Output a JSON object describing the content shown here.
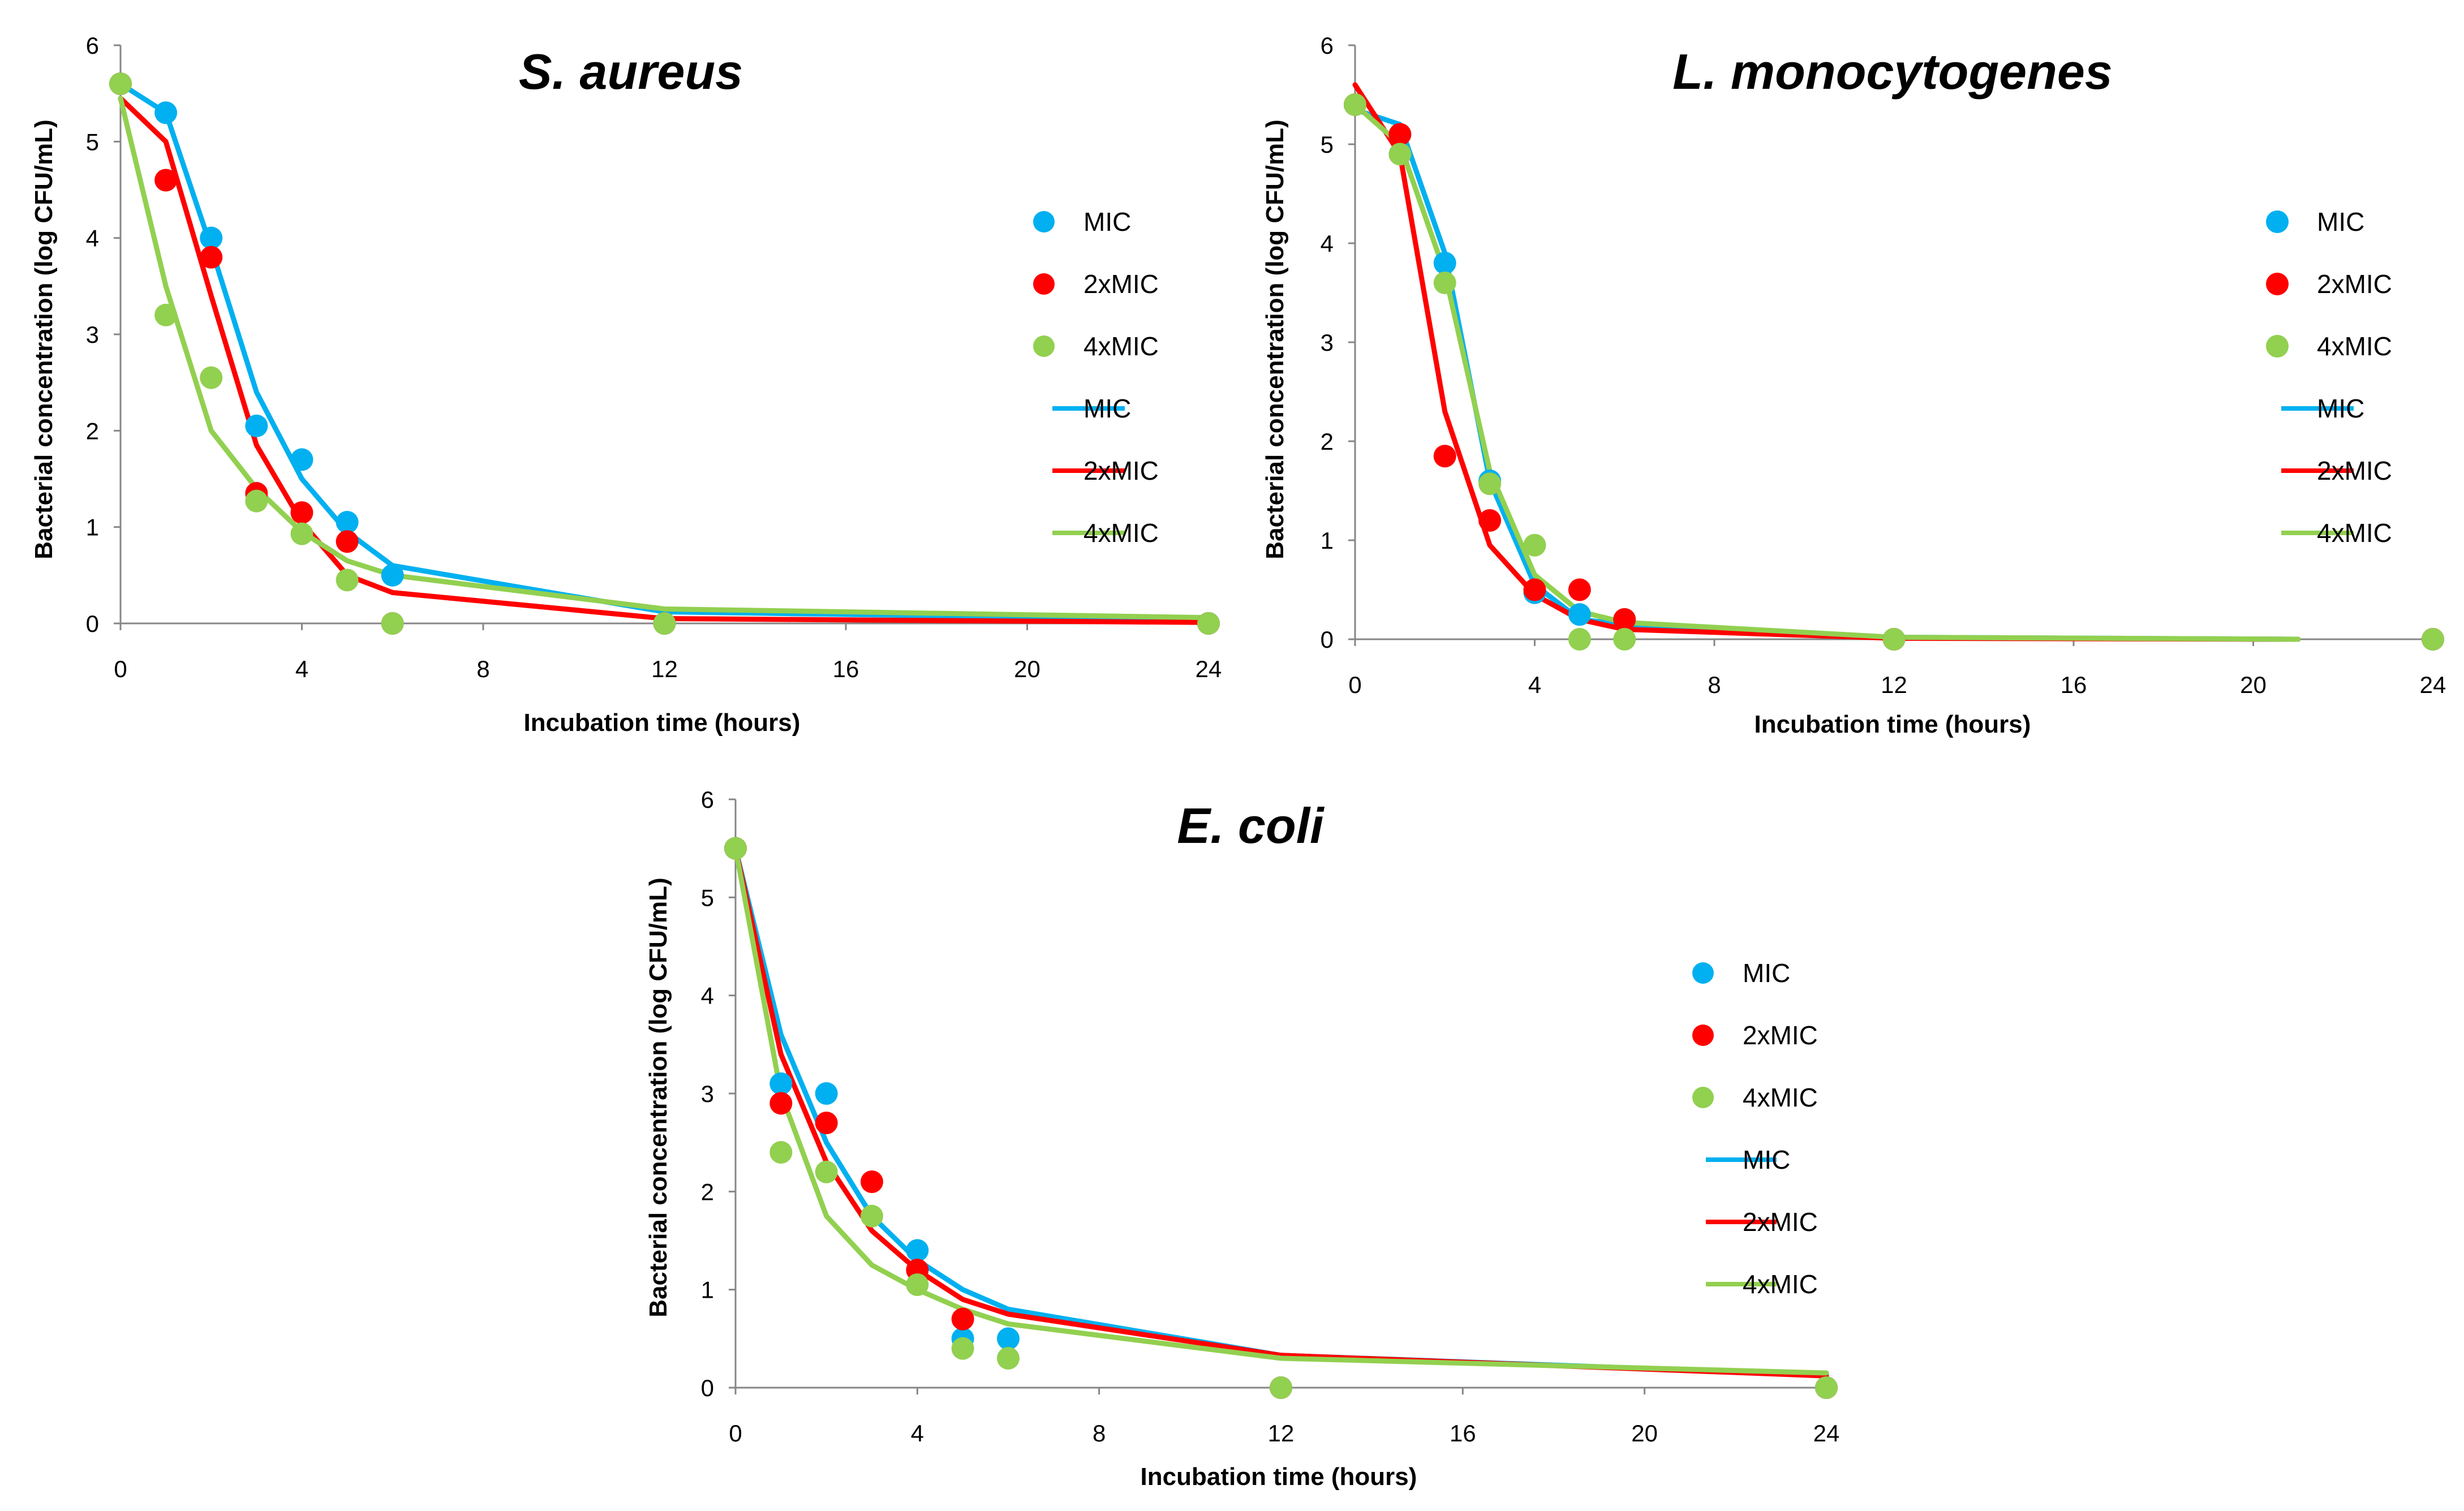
{
  "chart_data": [
    {
      "type": "scatter+line",
      "title": "S. aureus",
      "xlabel": "Incubation time (hours)",
      "ylabel": "Bacterial concentration (log CFU/mL)",
      "xlim": [
        0,
        24
      ],
      "ylim": [
        0,
        6
      ],
      "xticks": [
        "0",
        "4",
        "8",
        "12",
        "16",
        "20",
        "24"
      ],
      "yticks": [
        "0",
        "1",
        "2",
        "3",
        "4",
        "5",
        "6"
      ],
      "legend": [
        "MIC",
        "2xMIC",
        "4xMIC",
        "MIC",
        "2xMIC",
        "4xMIC"
      ],
      "points": [
        {
          "name": "MIC",
          "color": "#00b0f0",
          "x": [
            0,
            1,
            2,
            3,
            4,
            5,
            6,
            12,
            24
          ],
          "y": [
            5.6,
            5.3,
            4.0,
            2.05,
            1.7,
            1.05,
            0.5,
            0,
            0
          ]
        },
        {
          "name": "2xMIC",
          "color": "#ff0000",
          "x": [
            0,
            1,
            2,
            3,
            4,
            5,
            6,
            12,
            24
          ],
          "y": [
            5.6,
            4.6,
            3.8,
            1.35,
            1.15,
            0.85,
            0,
            0,
            0
          ]
        },
        {
          "name": "4xMIC",
          "color": "#92d050",
          "x": [
            0,
            1,
            2,
            3,
            4,
            5,
            6,
            12,
            24
          ],
          "y": [
            5.6,
            3.2,
            2.55,
            1.27,
            0.93,
            0.45,
            0,
            0,
            0
          ]
        }
      ],
      "lines": [
        {
          "name": "MIC",
          "color": "#00b0f0",
          "x": [
            0,
            1,
            2,
            3,
            4,
            5,
            6,
            12,
            24
          ],
          "y": [
            5.6,
            5.3,
            3.9,
            2.4,
            1.5,
            0.95,
            0.6,
            0.12,
            0.04
          ]
        },
        {
          "name": "2xMIC",
          "color": "#ff0000",
          "x": [
            0,
            1,
            2,
            3,
            4,
            5,
            6,
            12,
            24
          ],
          "y": [
            5.45,
            5.0,
            3.4,
            1.85,
            1.05,
            0.5,
            0.32,
            0.05,
            0.01
          ]
        },
        {
          "name": "4xMIC",
          "color": "#92d050",
          "x": [
            0,
            1,
            2,
            3,
            4,
            5,
            6,
            12,
            24
          ],
          "y": [
            5.45,
            3.5,
            2.0,
            1.4,
            0.95,
            0.65,
            0.5,
            0.15,
            0.06
          ]
        }
      ]
    },
    {
      "type": "scatter+line",
      "title": "L. monocytogenes",
      "xlabel": "Incubation time (hours)",
      "ylabel": "Bacterial concentration (log CFU/mL)",
      "xlim": [
        0,
        24
      ],
      "ylim": [
        0,
        6
      ],
      "xticks": [
        "0",
        "4",
        "8",
        "12",
        "16",
        "20",
        "24"
      ],
      "yticks": [
        "0",
        "1",
        "2",
        "3",
        "4",
        "5",
        "6"
      ],
      "legend": [
        "MIC",
        "2xMIC",
        "4xMIC",
        "MIC",
        "2xMIC",
        "4xMIC"
      ],
      "points": [
        {
          "name": "MIC",
          "color": "#00b0f0",
          "x": [
            0,
            1,
            2,
            3,
            4,
            5,
            6,
            12,
            24
          ],
          "y": [
            5.4,
            5.1,
            3.8,
            1.6,
            0.47,
            0.25,
            0.2,
            0,
            0
          ]
        },
        {
          "name": "2xMIC",
          "color": "#ff0000",
          "x": [
            0,
            1,
            2,
            3,
            4,
            5,
            6,
            12,
            24
          ],
          "y": [
            5.4,
            5.1,
            1.85,
            1.2,
            0.5,
            0.5,
            0.2,
            0,
            0
          ]
        },
        {
          "name": "4xMIC",
          "color": "#92d050",
          "x": [
            0,
            1,
            2,
            3,
            4,
            5,
            6,
            12,
            24
          ],
          "y": [
            5.4,
            4.9,
            3.6,
            1.57,
            0.95,
            0,
            0,
            0,
            0
          ]
        }
      ],
      "lines": [
        {
          "name": "MIC",
          "color": "#00b0f0",
          "x": [
            0,
            1,
            2,
            3,
            4,
            5,
            6,
            12,
            21
          ],
          "y": [
            5.35,
            5.2,
            3.9,
            1.6,
            0.55,
            0.2,
            0.15,
            0.02,
            0
          ]
        },
        {
          "name": "2xMIC",
          "color": "#ff0000",
          "x": [
            0,
            1,
            2,
            3,
            4,
            5,
            6,
            12,
            21
          ],
          "y": [
            5.6,
            4.9,
            2.3,
            0.95,
            0.45,
            0.2,
            0.1,
            0.01,
            0
          ]
        },
        {
          "name": "4xMIC",
          "color": "#92d050",
          "x": [
            0,
            1,
            2,
            3,
            4,
            5,
            6,
            12,
            21
          ],
          "y": [
            5.4,
            5.0,
            3.7,
            1.7,
            0.65,
            0.28,
            0.17,
            0.02,
            0
          ]
        }
      ]
    },
    {
      "type": "scatter+line",
      "title": "E. coli",
      "xlabel": "Incubation time (hours)",
      "ylabel": "Bacterial concentration (log CFU/mL)",
      "xlim": [
        0,
        24
      ],
      "ylim": [
        0,
        6
      ],
      "xticks": [
        "0",
        "4",
        "8",
        "12",
        "16",
        "20",
        "24"
      ],
      "yticks": [
        "0",
        "1",
        "2",
        "3",
        "4",
        "5",
        "6"
      ],
      "legend": [
        "MIC",
        "2xMIC",
        "4xMIC",
        "MIC",
        "2xMIC",
        "4xMIC"
      ],
      "points": [
        {
          "name": "MIC",
          "color": "#00b0f0",
          "x": [
            0,
            1,
            2,
            4,
            5,
            6,
            12,
            24
          ],
          "y": [
            5.5,
            3.1,
            3.0,
            1.4,
            0.5,
            0.5,
            0,
            0
          ]
        },
        {
          "name": "2xMIC",
          "color": "#ff0000",
          "x": [
            0,
            1,
            2,
            3,
            4,
            5,
            12,
            24
          ],
          "y": [
            5.5,
            2.9,
            2.7,
            2.1,
            1.2,
            0.7,
            0,
            0
          ]
        },
        {
          "name": "4xMIC",
          "color": "#92d050",
          "x": [
            0,
            1,
            2,
            3,
            4,
            5,
            6,
            12,
            24
          ],
          "y": [
            5.5,
            2.4,
            2.2,
            1.75,
            1.05,
            0.4,
            0.3,
            0,
            0
          ]
        }
      ],
      "lines": [
        {
          "name": "MIC",
          "color": "#00b0f0",
          "x": [
            0,
            1,
            2,
            3,
            4,
            5,
            6,
            12,
            24
          ],
          "y": [
            5.5,
            3.6,
            2.5,
            1.75,
            1.3,
            1.0,
            0.8,
            0.33,
            0.13
          ]
        },
        {
          "name": "2xMIC",
          "color": "#ff0000",
          "x": [
            0,
            1,
            2,
            3,
            4,
            5,
            6,
            12,
            24
          ],
          "y": [
            5.5,
            3.4,
            2.3,
            1.6,
            1.2,
            0.9,
            0.75,
            0.33,
            0.12
          ]
        },
        {
          "name": "4xMIC",
          "color": "#92d050",
          "x": [
            0,
            1,
            2,
            3,
            4,
            5,
            6,
            12,
            24
          ],
          "y": [
            5.5,
            3.0,
            1.75,
            1.25,
            1.0,
            0.8,
            0.65,
            0.3,
            0.15
          ]
        }
      ]
    }
  ]
}
